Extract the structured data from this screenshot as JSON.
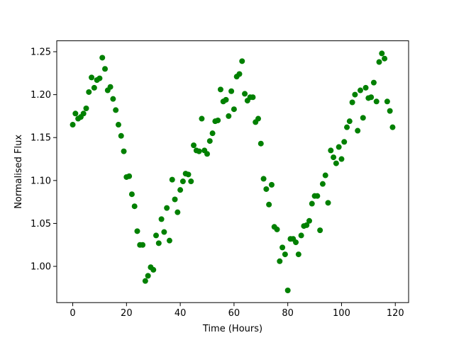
{
  "chart_data": {
    "type": "scatter",
    "xlabel": "Time (Hours)",
    "ylabel": "Normalised Flux",
    "color": "#008000",
    "x": [
      0,
      1,
      2,
      3,
      4,
      5,
      6,
      7,
      8,
      9,
      10,
      11,
      12,
      13,
      14,
      15,
      16,
      17,
      18,
      19,
      20,
      21,
      22,
      23,
      24,
      25,
      26,
      27,
      28,
      29,
      30,
      31,
      32,
      33,
      34,
      35,
      36,
      37,
      38,
      39,
      40,
      41,
      42,
      43,
      44,
      45,
      46,
      47,
      48,
      49,
      50,
      51,
      52,
      53,
      54,
      55,
      56,
      57,
      58,
      59,
      60,
      61,
      62,
      63,
      64,
      65,
      66,
      67,
      68,
      69,
      70,
      71,
      72,
      73,
      74,
      75,
      76,
      77,
      78,
      79,
      80,
      81,
      82,
      83,
      84,
      85,
      86,
      87,
      88,
      89,
      90,
      91,
      92,
      93,
      94,
      95,
      96,
      97,
      98,
      99,
      100,
      101,
      102,
      103,
      104,
      105,
      106,
      107,
      108,
      109,
      110,
      111,
      112,
      113,
      114,
      115,
      116,
      117,
      118,
      119
    ],
    "values": [
      1.165,
      1.178,
      1.172,
      1.174,
      1.178,
      1.184,
      1.203,
      1.22,
      1.208,
      1.217,
      1.219,
      1.243,
      1.23,
      1.205,
      1.209,
      1.195,
      1.182,
      1.165,
      1.152,
      1.134,
      1.104,
      1.105,
      1.084,
      1.07,
      1.041,
      1.025,
      1.025,
      0.983,
      0.989,
      0.999,
      0.996,
      1.036,
      1.027,
      1.055,
      1.04,
      1.068,
      1.03,
      1.101,
      1.078,
      1.063,
      1.089,
      1.099,
      1.108,
      1.107,
      1.099,
      1.141,
      1.135,
      1.134,
      1.172,
      1.135,
      1.131,
      1.146,
      1.155,
      1.169,
      1.17,
      1.206,
      1.192,
      1.194,
      1.175,
      1.204,
      1.183,
      1.221,
      1.224,
      1.239,
      1.201,
      1.193,
      1.197,
      1.197,
      1.168,
      1.172,
      1.143,
      1.102,
      1.09,
      1.072,
      1.095,
      1.046,
      1.043,
      1.006,
      1.022,
      1.014,
      0.972,
      1.032,
      1.032,
      1.028,
      1.014,
      1.036,
      1.047,
      1.048,
      1.053,
      1.073,
      1.082,
      1.082,
      1.042,
      1.096,
      1.106,
      1.074,
      1.135,
      1.127,
      1.12,
      1.139,
      1.125,
      1.145,
      1.162,
      1.169,
      1.191,
      1.2,
      1.158,
      1.205,
      1.173,
      1.208,
      1.196,
      1.197,
      1.214,
      1.192,
      1.238,
      1.248,
      1.242,
      1.192,
      1.181,
      1.162
    ],
    "xlim": [
      -5.95,
      124.95
    ],
    "ylim": [
      0.9578,
      1.2627
    ],
    "xticks": [
      0,
      20,
      40,
      60,
      80,
      100,
      120
    ],
    "yticks": [
      {
        "value": 1.0,
        "label": "1.00"
      },
      {
        "value": 1.05,
        "label": "1.05"
      },
      {
        "value": 1.1,
        "label": "1.10"
      },
      {
        "value": 1.15,
        "label": "1.15"
      },
      {
        "value": 1.2,
        "label": "1.20"
      },
      {
        "value": 1.25,
        "label": "1.25"
      }
    ]
  }
}
